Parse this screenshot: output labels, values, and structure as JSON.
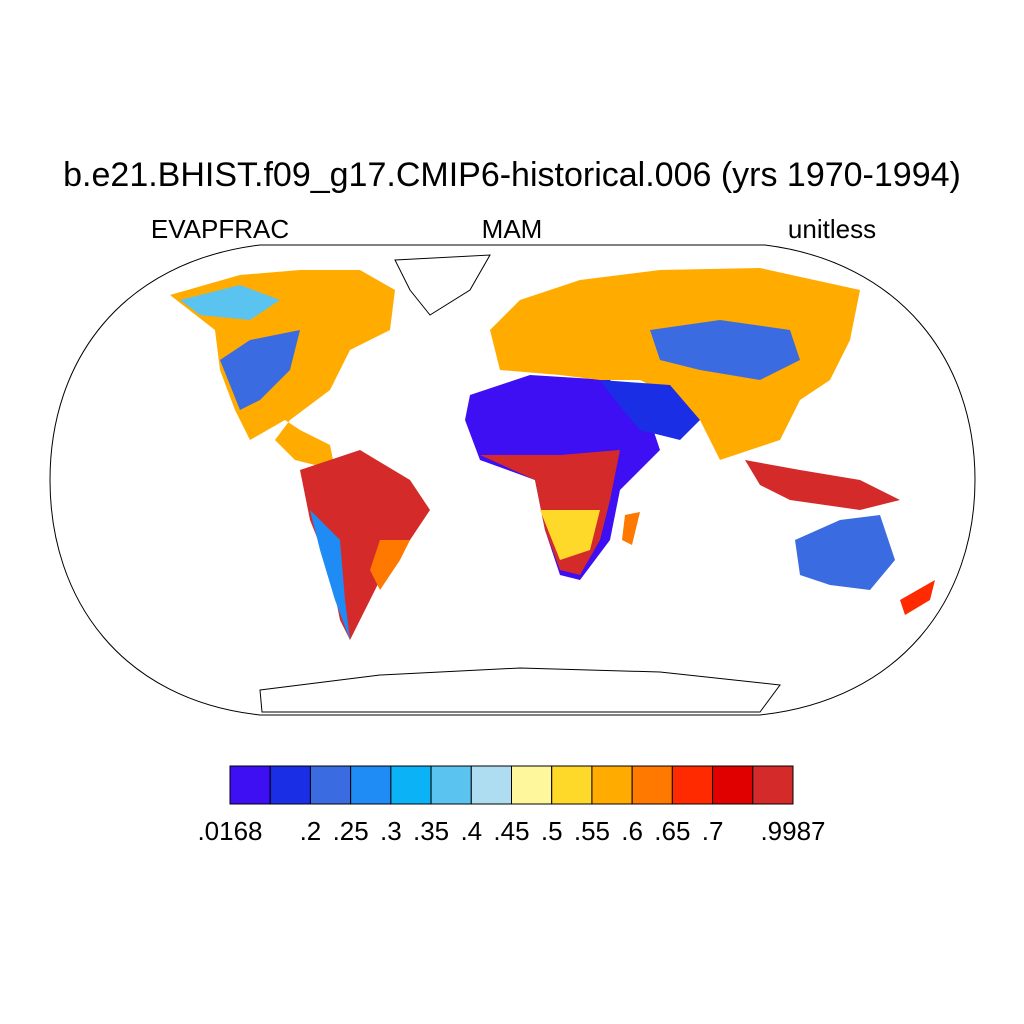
{
  "title": "b.e21.BHIST.f09_g17.CMIP6-historical.006 (yrs 1970-1994)",
  "left_string": "EVAPFRAC",
  "center_string": "MAM",
  "right_string": "unitless",
  "colorbar": {
    "colors": [
      "#3d0ff2",
      "#1a2ee6",
      "#3b6be0",
      "#1f8cf5",
      "#0bb2f5",
      "#5bc3f0",
      "#aedcf0",
      "#fff79c",
      "#ffd92a",
      "#ffab00",
      "#ff7800",
      "#ff2a00",
      "#e00000",
      "#d42a2a"
    ],
    "levels": [
      {
        "value": 0.0168,
        "label": ".0168"
      },
      null,
      {
        "value": 0.2,
        "label": ".2"
      },
      {
        "value": 0.25,
        "label": ".25"
      },
      {
        "value": 0.3,
        "label": ".3"
      },
      {
        "value": 0.35,
        "label": ".35"
      },
      {
        "value": 0.4,
        "label": ".4"
      },
      {
        "value": 0.45,
        "label": ".45"
      },
      {
        "value": 0.5,
        "label": ".5"
      },
      {
        "value": 0.55,
        "label": ".55"
      },
      {
        "value": 0.6,
        "label": ".6"
      },
      {
        "value": 0.65,
        "label": ".65"
      },
      {
        "value": 0.7,
        "label": ".7"
      },
      null,
      {
        "value": 0.9987,
        "label": ".9987"
      }
    ]
  }
}
